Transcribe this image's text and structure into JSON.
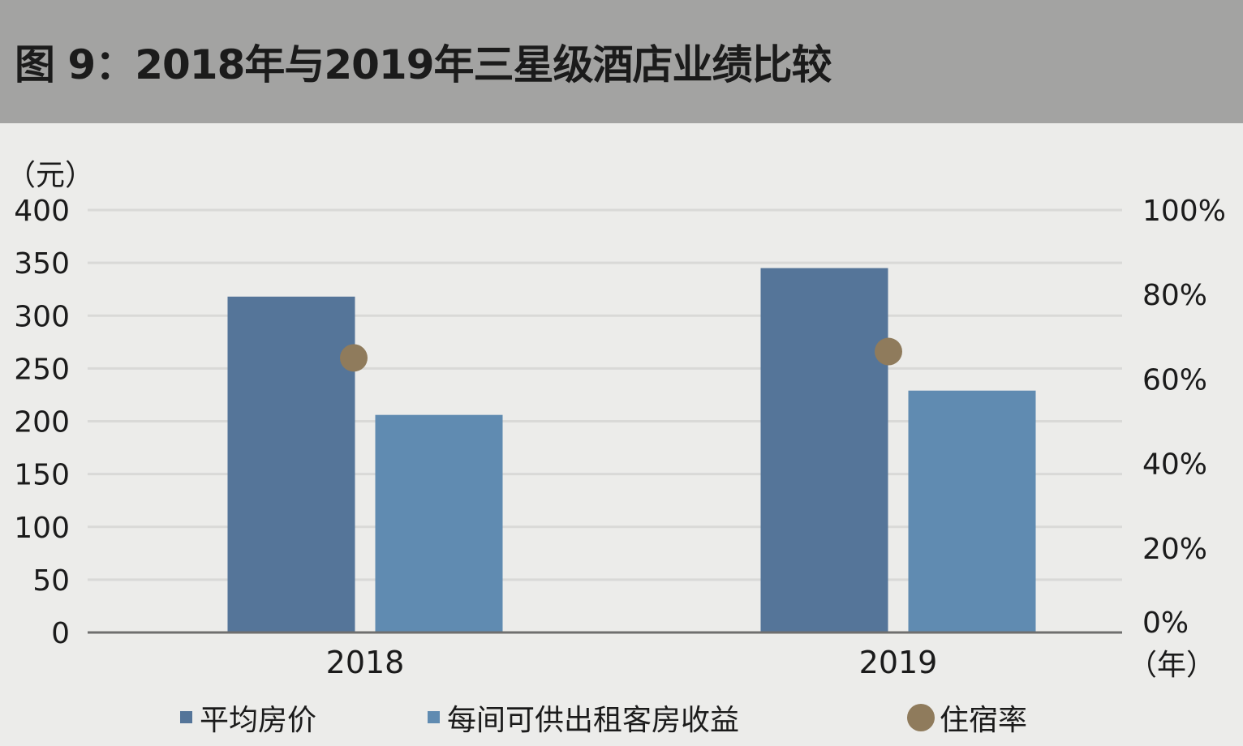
{
  "header": {
    "title": "图 9：2018年与2019年三星级酒店业绩比较"
  },
  "chart_data": {
    "type": "bar",
    "title": "图 9：2018年与2019年三星级酒店业绩比较",
    "y_unit_label": "（元）",
    "x_unit_label": "（年）",
    "categories": [
      "2018",
      "2019"
    ],
    "ylim": [
      0,
      400
    ],
    "yticks": [
      0,
      50,
      100,
      150,
      200,
      250,
      300,
      350,
      400
    ],
    "y2lim": [
      0,
      1
    ],
    "y2ticks": [
      "0%",
      "20%",
      "40%",
      "60%",
      "80%",
      "100%"
    ],
    "grid": true,
    "legend_position": "bottom",
    "series": [
      {
        "name": "平均房价",
        "type": "bar",
        "axis": "left",
        "color": "#557599",
        "values": [
          318,
          345
        ]
      },
      {
        "name": "每间可供出租客房收益",
        "type": "bar",
        "axis": "left",
        "color": "#608bb1",
        "values": [
          206,
          229
        ]
      },
      {
        "name": "住宿率",
        "type": "scatter",
        "axis": "right",
        "color": "#8f7b5c",
        "values": [
          0.65,
          0.665
        ]
      }
    ]
  }
}
